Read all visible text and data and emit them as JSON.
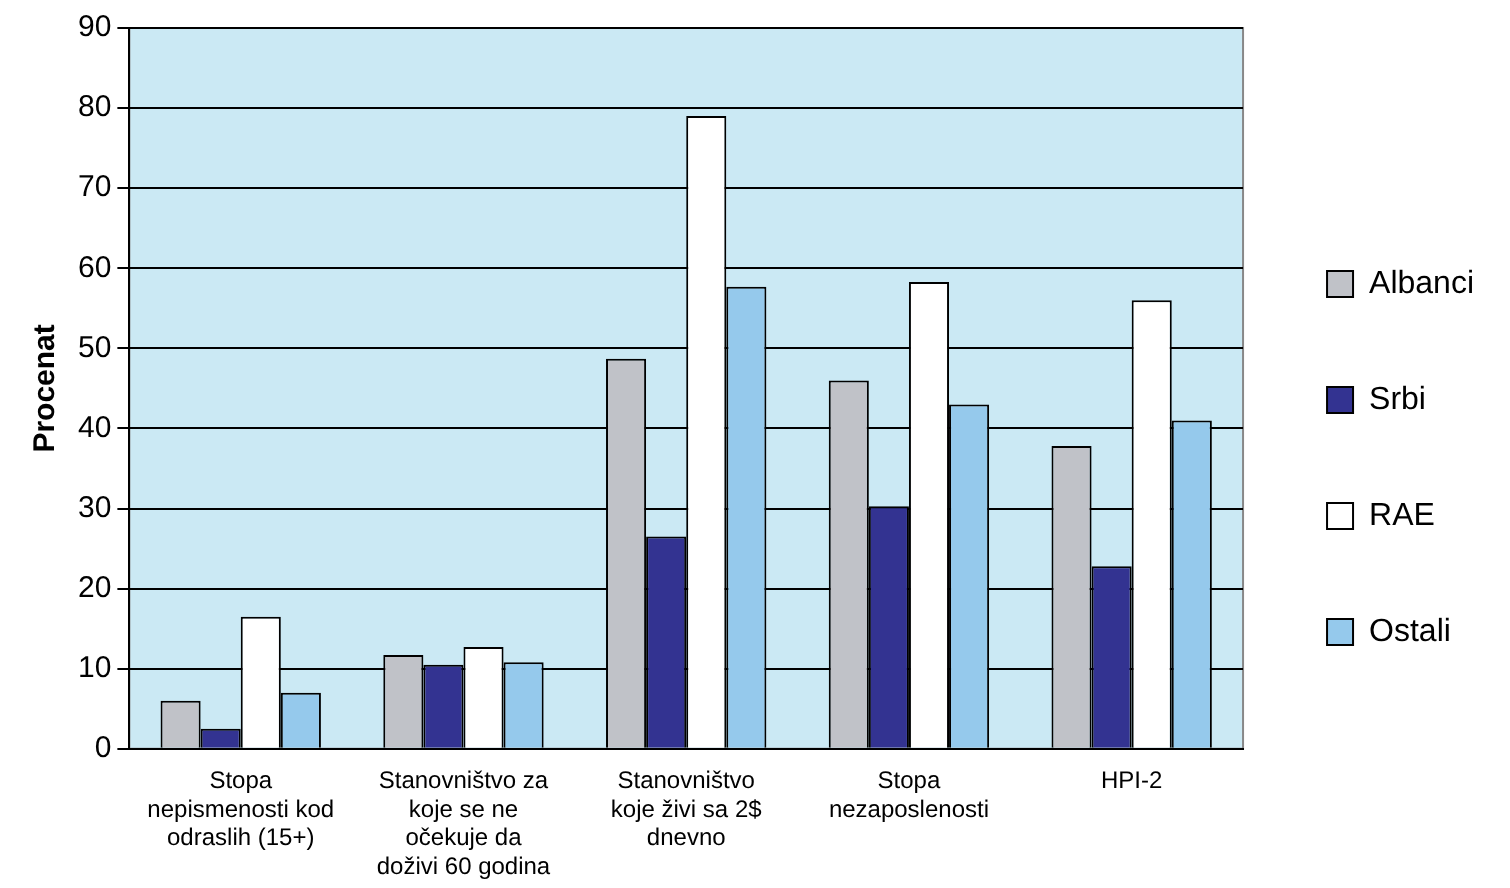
{
  "chart_data": {
    "type": "bar",
    "ylabel": "Procenat",
    "categories": [
      "Stopa nepismenosti kod odraslih (15+)",
      "Stanovništvo za koje se ne očekuje da doživi 60 godina",
      "Stanovništvo koje živi sa 2$ dnevno",
      "Stopa nezaposlenosti",
      "HPI-2"
    ],
    "series": [
      {
        "name": "Albanci",
        "color": "#c0c2c8",
        "values": [
          6,
          11.7,
          48.7,
          46,
          37.8
        ]
      },
      {
        "name": "Srbi",
        "color": "#333391",
        "values": [
          2.5,
          10.5,
          26.5,
          30.3,
          22.8
        ]
      },
      {
        "name": "RAE",
        "color": "#ffffff",
        "values": [
          16.5,
          12.7,
          79,
          58.3,
          56
        ]
      },
      {
        "name": "Ostali",
        "color": "#95c9ec",
        "values": [
          7,
          10.8,
          57.7,
          43,
          41
        ]
      }
    ],
    "ylim": [
      0,
      90
    ],
    "yticks": [
      0,
      10,
      20,
      30,
      40,
      50,
      60,
      70,
      80,
      90
    ],
    "grid": "y",
    "legend": "right"
  }
}
